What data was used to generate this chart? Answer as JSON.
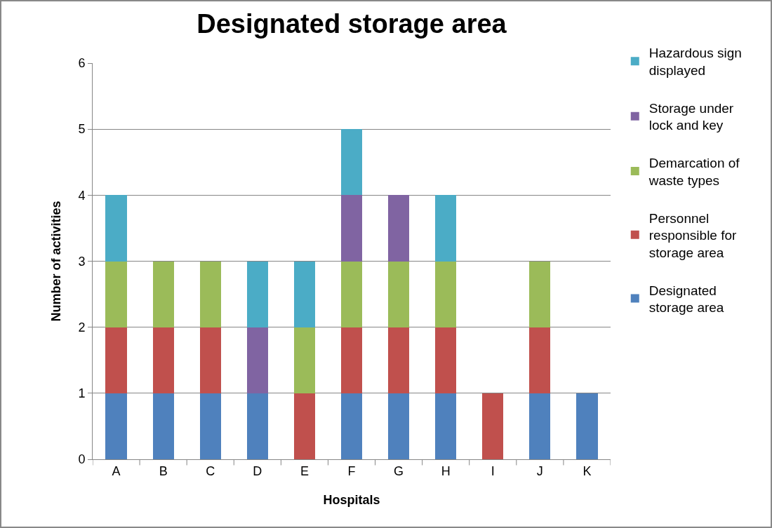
{
  "chart_data": {
    "type": "bar",
    "title": "Designated storage area",
    "xlabel": "Hospitals",
    "ylabel": "Number of activities",
    "categories": [
      "A",
      "B",
      "C",
      "D",
      "E",
      "F",
      "G",
      "H",
      "I",
      "J",
      "K"
    ],
    "stacked": true,
    "ylim": [
      0,
      6
    ],
    "yticks": [
      0,
      1,
      2,
      3,
      4,
      5,
      6
    ],
    "grid": "y",
    "legend": "right",
    "series": [
      {
        "name": "Designated storage area",
        "color": "#4f81bd",
        "values": [
          1,
          1,
          1,
          1,
          0,
          1,
          1,
          1,
          0,
          1,
          1
        ]
      },
      {
        "name": "Personnel responsible for storage area",
        "color": "#c0504d",
        "values": [
          1,
          1,
          1,
          0,
          1,
          1,
          1,
          1,
          1,
          1,
          0
        ]
      },
      {
        "name": "Demarcation of waste types",
        "color": "#9bbb59",
        "values": [
          1,
          1,
          1,
          0,
          1,
          1,
          1,
          1,
          0,
          1,
          0
        ]
      },
      {
        "name": "Storage under lock and key",
        "color": "#8064a2",
        "values": [
          0,
          0,
          0,
          1,
          0,
          1,
          1,
          0,
          0,
          0,
          0
        ]
      },
      {
        "name": "Hazardous sign displayed",
        "color": "#4bacc6",
        "values": [
          1,
          0,
          0,
          1,
          1,
          1,
          0,
          1,
          0,
          0,
          0
        ]
      }
    ]
  }
}
